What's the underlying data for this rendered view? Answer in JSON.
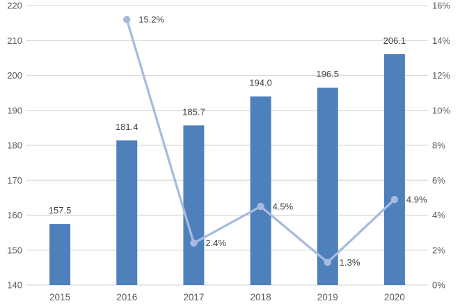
{
  "chart_data": {
    "type": "bar",
    "subtype": "combo-bar-line",
    "title": "",
    "xlabel": "",
    "ylabel": "",
    "grid": true,
    "legend_position": "none",
    "categories": [
      "2015",
      "2016",
      "2017",
      "2018",
      "2019",
      "2020"
    ],
    "series": [
      {
        "name": "value-bars",
        "type": "bar",
        "axis": "left",
        "color": "#4e80bc",
        "values": [
          157.5,
          181.4,
          185.7,
          194.0,
          196.5,
          206.1
        ],
        "labels": [
          "157.5",
          "181.4",
          "185.7",
          "194.0",
          "196.5",
          "206.1"
        ]
      },
      {
        "name": "growth-rate-line",
        "type": "line",
        "axis": "right",
        "color": "#a8bade",
        "values": [
          null,
          15.2,
          2.4,
          4.5,
          1.3,
          4.9
        ],
        "labels": [
          null,
          "15.2%",
          "2.4%",
          "4.5%",
          "1.3%",
          "4.9%"
        ]
      }
    ],
    "left_axis": {
      "min": 140,
      "max": 220,
      "step": 10,
      "tick_labels": [
        "140",
        "150",
        "160",
        "170",
        "180",
        "190",
        "200",
        "210",
        "220"
      ]
    },
    "right_axis": {
      "min": 0,
      "max": 16,
      "step": 2,
      "tick_labels": [
        "0%",
        "2%",
        "4%",
        "6%",
        "8%",
        "10%",
        "12%",
        "14%",
        "16%"
      ]
    },
    "colors": {
      "background": "#ffffff",
      "gridline": "#d9d9d9",
      "axis_line": "#d9d9d9",
      "tick_text": "#595959",
      "data_label": "#404040"
    }
  }
}
